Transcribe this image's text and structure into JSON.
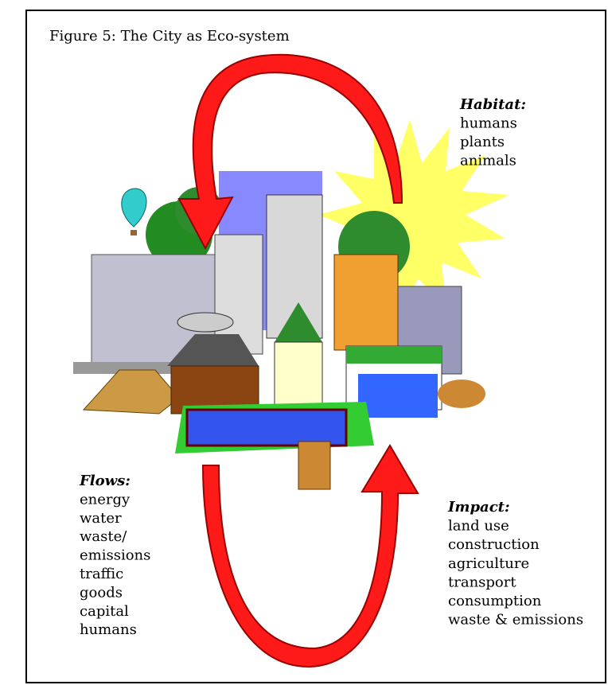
{
  "title": "Figure 5: The City as Eco-system",
  "habitat": {
    "heading": "Habitat:",
    "items": [
      "humans",
      "plants",
      "animals"
    ]
  },
  "flows": {
    "heading": "Flows:",
    "items": [
      "energy",
      "water",
      "waste/",
      "emissions",
      "traffic",
      "goods",
      "capital",
      "humans"
    ]
  },
  "impact": {
    "heading": "Impact:",
    "items": [
      "land use",
      "construction",
      "agriculture",
      "transport",
      "consumption",
      "waste & emissions"
    ]
  }
}
